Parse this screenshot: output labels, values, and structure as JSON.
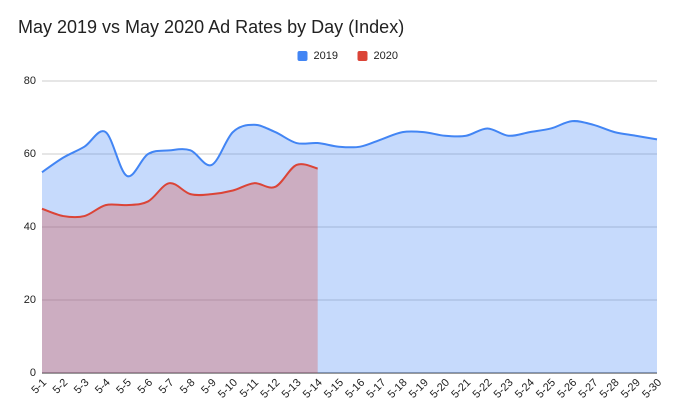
{
  "chart_data": {
    "type": "area",
    "title": "May 2019 vs May 2020 Ad Rates by Day (Index)",
    "categories": [
      "5-1",
      "5-2",
      "5-3",
      "5-4",
      "5-5",
      "5-6",
      "5-7",
      "5-8",
      "5-9",
      "5-10",
      "5-11",
      "5-12",
      "5-13",
      "5-14",
      "5-15",
      "5-16",
      "5-17",
      "5-18",
      "5-19",
      "5-20",
      "5-21",
      "5-22",
      "5-23",
      "5-24",
      "5-25",
      "5-26",
      "5-27",
      "5-28",
      "5-29",
      "5-30"
    ],
    "series": [
      {
        "name": "2019",
        "color": "#4285f4",
        "values": [
          55,
          59,
          62,
          66,
          54,
          60,
          61,
          61,
          57,
          66,
          68,
          66,
          63,
          63,
          62,
          62,
          64,
          66,
          66,
          65,
          65,
          67,
          65,
          66,
          67,
          69,
          68,
          66,
          65,
          64
        ]
      },
      {
        "name": "2020",
        "color": "#db4437",
        "values": [
          45,
          43,
          43,
          46,
          46,
          47,
          52,
          49,
          49,
          50,
          52,
          51,
          57,
          56,
          null,
          null,
          null,
          null,
          null,
          null,
          null,
          null,
          null,
          null,
          null,
          null,
          null,
          null,
          null,
          null
        ]
      }
    ],
    "ylim": [
      0,
      80
    ],
    "yticks": [
      0,
      20,
      40,
      60,
      80
    ],
    "grid": true,
    "legend": "top"
  }
}
